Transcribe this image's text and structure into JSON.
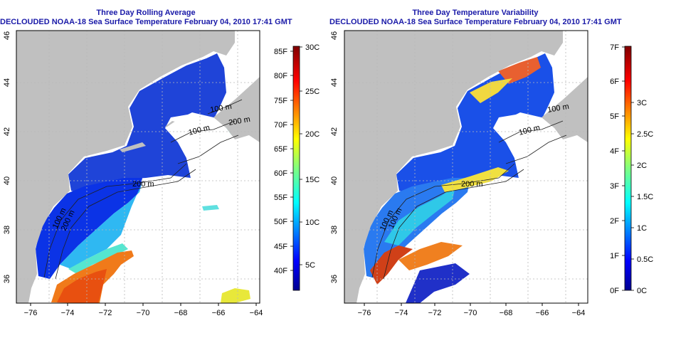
{
  "left_panel": {
    "title_line1": "Three Day Rolling Average",
    "title_line2": "DECLOUDED NOAA-18 Sea Surface Temperature February 04, 2010 17:41 GMT",
    "lon_ticks": [
      "−76",
      "−74",
      "−72",
      "−70",
      "−68",
      "−66",
      "−64"
    ],
    "lat_ticks": [
      "36",
      "38",
      "40",
      "42",
      "44",
      "46"
    ],
    "contour_labels": [
      "100 m",
      "100 m",
      "200 m",
      "200 m",
      "200 m",
      "100 m"
    ],
    "colorbar": {
      "left_labels": [
        "40F",
        "45F",
        "50F",
        "55F",
        "60F",
        "65F",
        "70F",
        "75F",
        "80F",
        "85F"
      ],
      "right_labels": [
        "5C",
        "10C",
        "15C",
        "20C",
        "25C",
        "30C"
      ]
    }
  },
  "right_panel": {
    "title_line1": "Three Day Temperature Variability",
    "title_line2": "DECLOUDED NOAA-18 Sea Surface Temperature February 04, 2010 17:41 GMT",
    "lon_ticks": [
      "−76",
      "−74",
      "−72",
      "−70",
      "−68",
      "−66",
      "−64"
    ],
    "lat_ticks": [
      "36",
      "38",
      "40",
      "42",
      "44",
      "46"
    ],
    "contour_labels": [
      "100 m",
      "100 m",
      "200 m",
      "100 m",
      "100 m"
    ],
    "colorbar": {
      "left_labels": [
        "0F",
        "1F",
        "2F",
        "3F",
        "4F",
        "5F",
        "6F",
        "7F"
      ],
      "right_labels": [
        "0C",
        "0.5C",
        "1C",
        "1.5C",
        "2C",
        "2.5C",
        "3C"
      ]
    }
  },
  "colors": {
    "title": "#1a1aa8",
    "land": "#c0c0c0",
    "ocean_nodata": "#ffffff",
    "grid": "#b8b8b8"
  }
}
